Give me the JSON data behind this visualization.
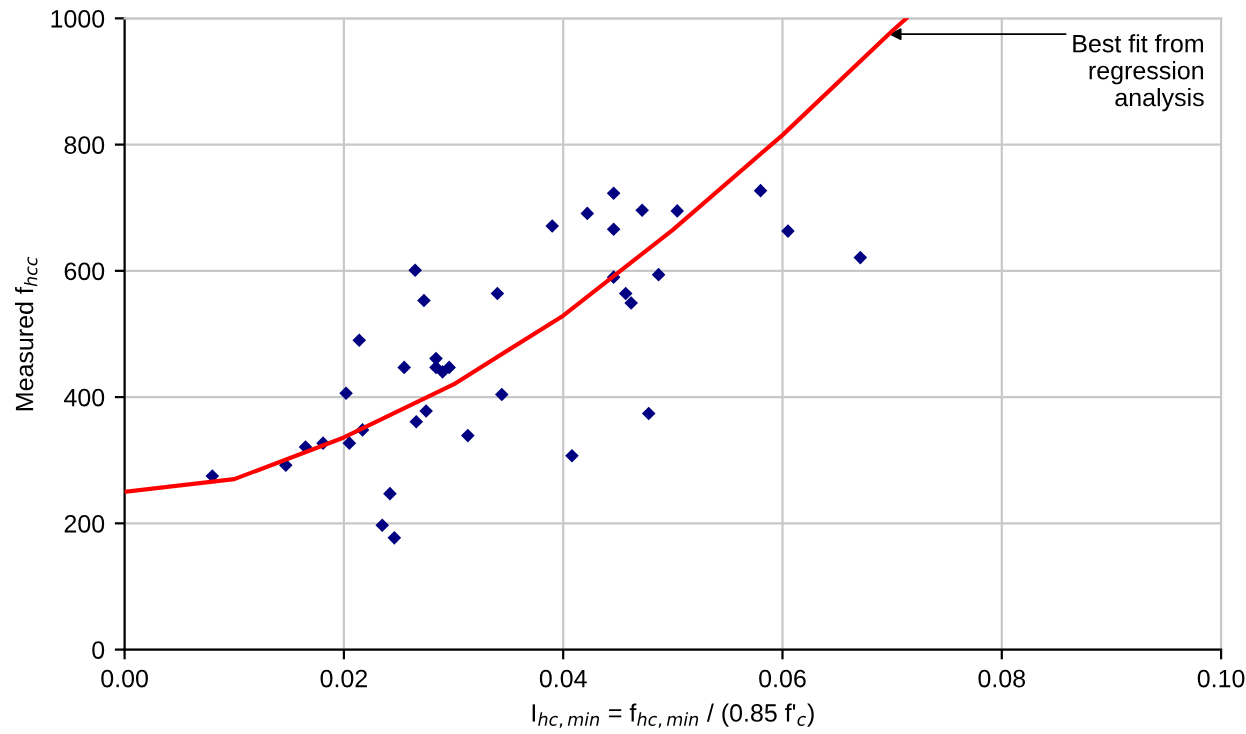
{
  "chart_data": {
    "type": "scatter",
    "xlabel": "I$_{hc,min}$ = f$_{hc,min}$ / (0.85 f'$_{c}$)",
    "ylabel": "Measured f$_{hcc}$",
    "xlim": [
      0,
      0.1
    ],
    "ylim": [
      0,
      1000
    ],
    "xticks": [
      {
        "value": 0,
        "label": "0.00"
      },
      {
        "value": 0.02,
        "label": "0.02"
      },
      {
        "value": 0.04,
        "label": "0.04"
      },
      {
        "value": 0.06,
        "label": "0.06"
      },
      {
        "value": 0.08,
        "label": "0.08"
      },
      {
        "value": 0.1,
        "label": "0.10"
      }
    ],
    "yticks": [
      0,
      200,
      400,
      600,
      800,
      1000
    ],
    "grid": true,
    "legend": false,
    "series": [
      {
        "color": "#000080",
        "marker": "diamond",
        "x": [
          0.008,
          0.0147,
          0.0165,
          0.0181,
          0.0202,
          0.0205,
          0.0217,
          0.0214,
          0.0235,
          0.0242,
          0.0246,
          0.0255,
          0.0265,
          0.0273,
          0.0266,
          0.0275,
          0.0284,
          0.0284,
          0.029,
          0.0296,
          0.0313,
          0.034,
          0.0344,
          0.039,
          0.0408,
          0.0422,
          0.0446,
          0.0446,
          0.0446,
          0.0457,
          0.0462,
          0.0472,
          0.0478,
          0.0487,
          0.0504,
          0.058,
          0.0605,
          0.0671
        ],
        "values": [
          275,
          292,
          321,
          327,
          406,
          327,
          348,
          490,
          197,
          247,
          177,
          447,
          601,
          553,
          361,
          378,
          461,
          447,
          440,
          447,
          339,
          564,
          404,
          671,
          307,
          691,
          723,
          666,
          590,
          564,
          549,
          696,
          374,
          594,
          695,
          727,
          663,
          621
        ]
      },
      {
        "type": "line",
        "color": "#ff0000",
        "marker": "none",
        "line_style": "solid",
        "x": [
          0,
          0.01,
          0.02,
          0.03,
          0.04,
          0.05,
          0.06,
          0.07,
          0.0713
        ],
        "values": [
          250,
          270,
          336,
          420,
          529,
          665,
          815,
          980,
          1000
        ]
      }
    ],
    "annotations": [
      {
        "text": "Best fit from\nregression\nanalysis",
        "x": 0.0697,
        "y": 975
      }
    ]
  }
}
